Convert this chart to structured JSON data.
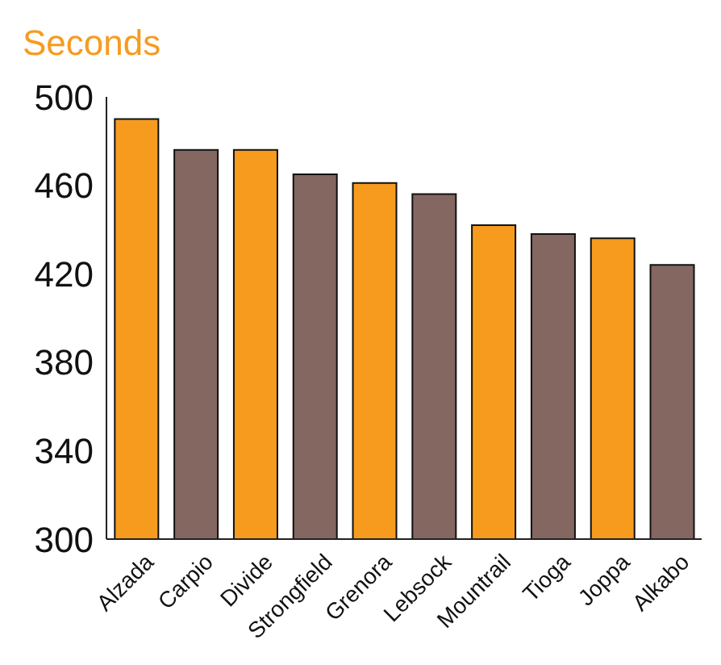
{
  "chart_data": {
    "type": "bar",
    "ylabel": "Seconds",
    "categories": [
      "Alzada",
      "Carpio",
      "Divide",
      "Strongfield",
      "Grenora",
      "Lebsock",
      "Mountrail",
      "Tioga",
      "Joppa",
      "Alkabo"
    ],
    "values": [
      490,
      476,
      476,
      465,
      461,
      456,
      442,
      438,
      436,
      424
    ],
    "colors": [
      "#f79b1f",
      "#846761",
      "#f79b1f",
      "#846761",
      "#f79b1f",
      "#846761",
      "#f79b1f",
      "#846761",
      "#f79b1f",
      "#846761"
    ],
    "ylim": [
      300,
      500
    ],
    "yticks": [
      300,
      340,
      380,
      420,
      460,
      500
    ],
    "grid": false,
    "legend": false
  }
}
